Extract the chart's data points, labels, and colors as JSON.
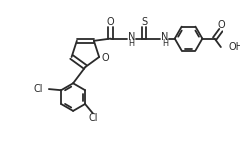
{
  "bg_color": "#ffffff",
  "line_color": "#2a2a2a",
  "line_width": 1.3,
  "font_size": 7.0,
  "figsize": [
    2.4,
    1.63
  ],
  "dpi": 100,
  "xlim": [
    0.0,
    10.0
  ],
  "ylim": [
    0.0,
    7.0
  ]
}
